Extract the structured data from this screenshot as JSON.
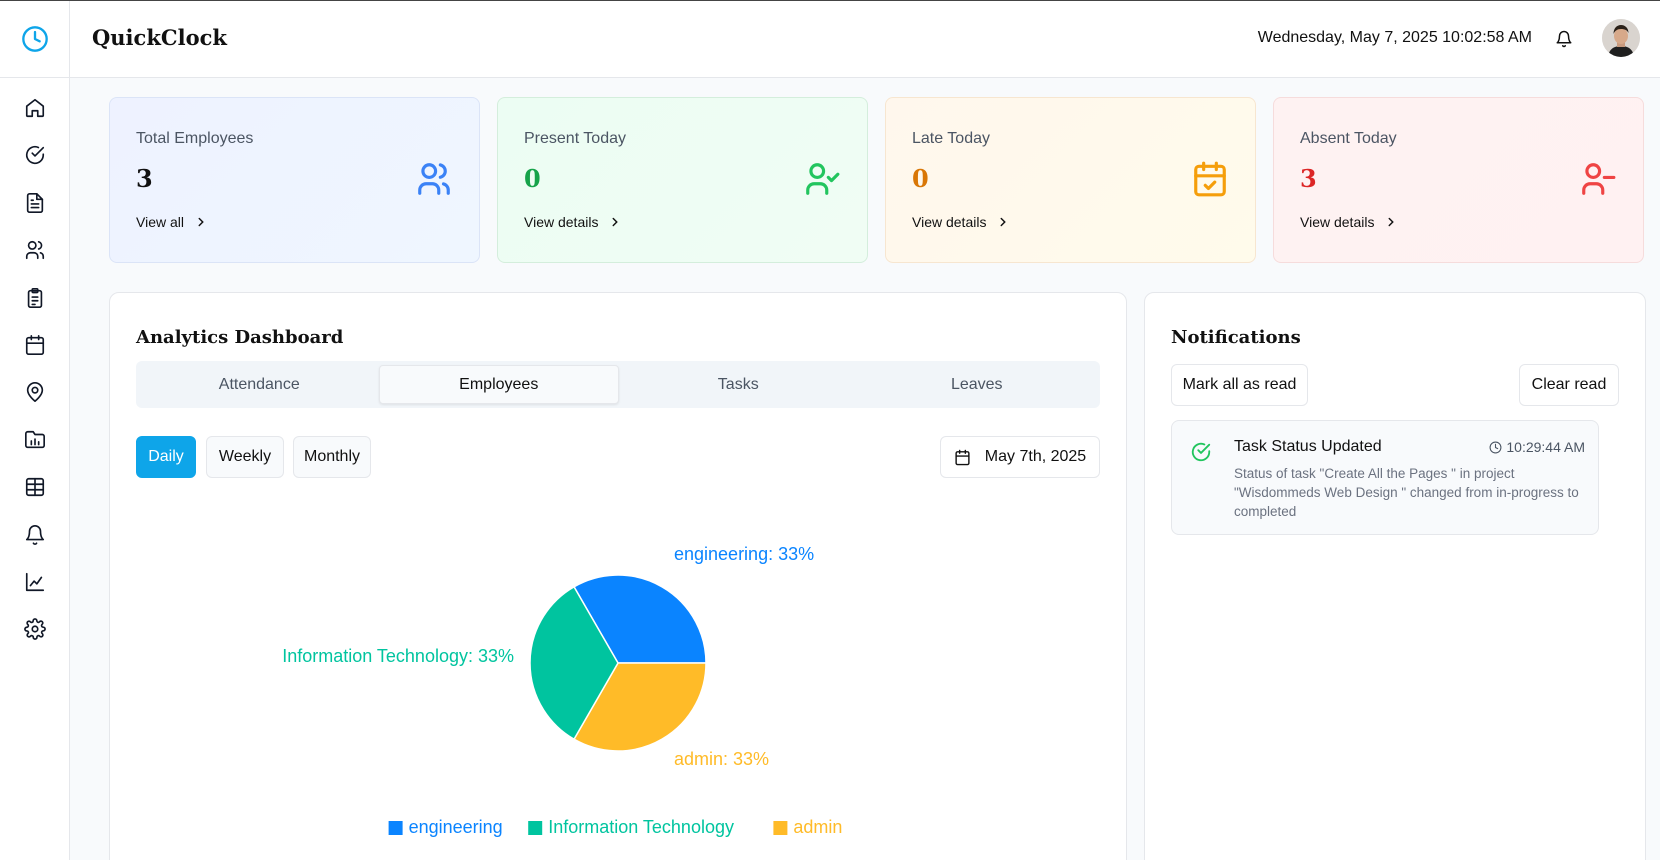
{
  "app": {
    "title": "QuickClock"
  },
  "header": {
    "datetime": "Wednesday, May 7, 2025 10:02:58 AM"
  },
  "sidebar": {
    "items": [
      {
        "icon": "home-icon"
      },
      {
        "icon": "check-circle-icon"
      },
      {
        "icon": "document-icon"
      },
      {
        "icon": "users-icon"
      },
      {
        "icon": "clipboard-icon"
      },
      {
        "icon": "calendar-icon"
      },
      {
        "icon": "map-pin-icon"
      },
      {
        "icon": "folder-chart-icon"
      },
      {
        "icon": "table-icon"
      },
      {
        "icon": "bell-icon"
      },
      {
        "icon": "line-chart-icon"
      },
      {
        "icon": "settings-icon"
      }
    ]
  },
  "stats": [
    {
      "label": "Total Employees",
      "value": "3",
      "link": "View all",
      "color": "#2563eb",
      "icon": "users-icon"
    },
    {
      "label": "Present Today",
      "value": "0",
      "link": "View details",
      "color": "#16a34a",
      "icon": "user-check-icon"
    },
    {
      "label": "Late Today",
      "value": "0",
      "link": "View details",
      "color": "#d97706",
      "icon": "calendar-check-icon"
    },
    {
      "label": "Absent Today",
      "value": "3",
      "link": "View details",
      "color": "#dc2626",
      "icon": "user-minus-icon"
    }
  ],
  "analytics": {
    "title": "Analytics Dashboard",
    "tabs": [
      "Attendance",
      "Employees",
      "Tasks",
      "Leaves"
    ],
    "active_tab": "Employees",
    "periods": [
      "Daily",
      "Weekly",
      "Monthly"
    ],
    "active_period": "Daily",
    "date": "May 7th, 2025"
  },
  "chart_data": {
    "type": "pie",
    "categories": [
      "engineering",
      "Information Technology",
      "admin"
    ],
    "values": [
      33,
      33,
      33
    ],
    "slice_labels": [
      "engineering: 33%",
      "Information Technology: 33%",
      "admin: 33%"
    ],
    "colors": [
      "#0a84ff",
      "#00c49f",
      "#ffbb28"
    ],
    "legend": "bottom"
  },
  "notifications": {
    "title": "Notifications",
    "mark_all_label": "Mark all as read",
    "clear_label": "Clear read",
    "items": [
      {
        "title": "Task Status Updated",
        "time": "10:29:44 AM",
        "message": "Status of task \"Create All the Pages \" in project \"Wisdommeds Web Design \" changed from in-progress to completed"
      }
    ]
  }
}
